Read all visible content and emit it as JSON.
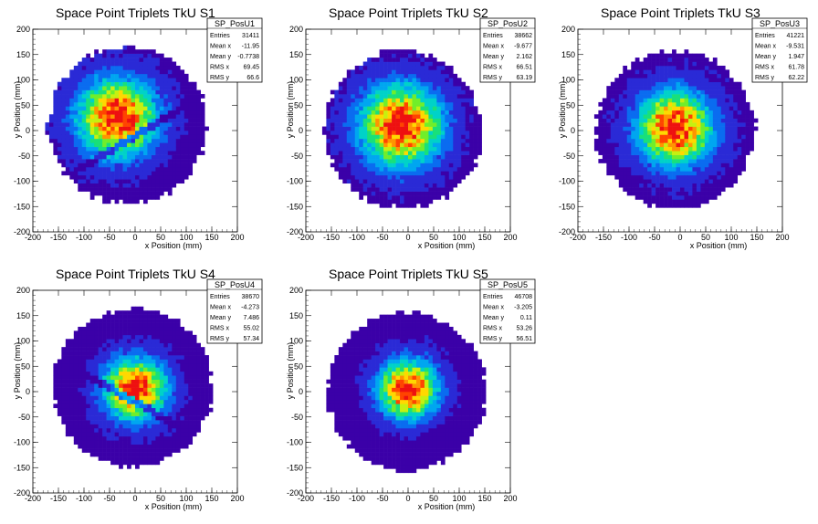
{
  "chart_data": [
    {
      "type": "heatmap",
      "title": "Space Point Triplets TkU S1",
      "xlabel": "x Position (mm)",
      "ylabel": "y Position (mm)",
      "xlim": [
        -200,
        200
      ],
      "ylim": [
        -200,
        200
      ],
      "xticks": [
        "-200",
        "-150",
        "-100",
        "-50",
        "0",
        "50",
        "100",
        "150",
        "200"
      ],
      "yticks": [
        "-200",
        "-150",
        "-100",
        "-50",
        "0",
        "50",
        "100",
        "150",
        "200"
      ],
      "stats": {
        "name": "SP_PosU1",
        "rows": [
          [
            "Entries",
            "31411"
          ],
          [
            "Mean x",
            "-11.95"
          ],
          [
            "Mean y",
            "-0.7738"
          ],
          [
            "RMS x",
            "69.45"
          ],
          [
            "RMS y",
            "66.6"
          ]
        ]
      },
      "distribution": {
        "radius": 155,
        "center_x": -15,
        "center_y": 10,
        "sigma": 48,
        "peak_x": -35,
        "peak_y": 25,
        "band": {
          "slope": 0.6,
          "offset_mm": -10,
          "width_mm": 7
        }
      }
    },
    {
      "type": "heatmap",
      "title": "Space Point Triplets TkU S2",
      "xlabel": "x Position (mm)",
      "ylabel": "y Position (mm)",
      "xlim": [
        -200,
        200
      ],
      "ylim": [
        -200,
        200
      ],
      "xticks": [
        "-200",
        "-150",
        "-100",
        "-50",
        "0",
        "50",
        "100",
        "150",
        "200"
      ],
      "yticks": [
        "-200",
        "-150",
        "-100",
        "-50",
        "0",
        "50",
        "100",
        "150",
        "200"
      ],
      "stats": {
        "name": "SP_PosU2",
        "rows": [
          [
            "Entries",
            "38662"
          ],
          [
            "Mean x",
            "-9.677"
          ],
          [
            "Mean y",
            "2.162"
          ],
          [
            "RMS x",
            "66.51"
          ],
          [
            "RMS y",
            "63.19"
          ]
        ]
      },
      "distribution": {
        "radius": 155,
        "center_x": -10,
        "center_y": 2,
        "sigma": 50,
        "peak_x": -15,
        "peak_y": 10
      }
    },
    {
      "type": "heatmap",
      "title": "Space Point Triplets TkU S3",
      "xlabel": "x Position (mm)",
      "ylabel": "y Position (mm)",
      "xlim": [
        -200,
        200
      ],
      "ylim": [
        -200,
        200
      ],
      "xticks": [
        "-200",
        "-150",
        "-100",
        "-50",
        "0",
        "50",
        "100",
        "150",
        "200"
      ],
      "yticks": [
        "-200",
        "-150",
        "-100",
        "-50",
        "0",
        "50",
        "100",
        "150",
        "200"
      ],
      "stats": {
        "name": "SP_PosU3",
        "rows": [
          [
            "Entries",
            "41221"
          ],
          [
            "Mean x",
            "-9.531"
          ],
          [
            "Mean y",
            "1.947"
          ],
          [
            "RMS x",
            "61.78"
          ],
          [
            "RMS y",
            "62.22"
          ]
        ]
      },
      "distribution": {
        "radius": 155,
        "center_x": -10,
        "center_y": 2,
        "sigma": 46,
        "peak_x": -10,
        "peak_y": 5
      }
    },
    {
      "type": "heatmap",
      "title": "Space Point Triplets TkU S4",
      "xlabel": "x Position (mm)",
      "ylabel": "y Position (mm)",
      "xlim": [
        -200,
        200
      ],
      "ylim": [
        -200,
        200
      ],
      "xticks": [
        "-200",
        "-150",
        "-100",
        "-50",
        "0",
        "50",
        "100",
        "150",
        "200"
      ],
      "yticks": [
        "-200",
        "-150",
        "-100",
        "-50",
        "0",
        "50",
        "100",
        "150",
        "200"
      ],
      "stats": {
        "name": "SP_PosU4",
        "rows": [
          [
            "Entries",
            "38670"
          ],
          [
            "Mean x",
            "-4.273"
          ],
          [
            "Mean y",
            "7.486"
          ],
          [
            "RMS x",
            "55.02"
          ],
          [
            "RMS y",
            "57.34"
          ]
        ]
      },
      "distribution": {
        "radius": 155,
        "center_x": -5,
        "center_y": 8,
        "sigma": 38,
        "peak_x": 0,
        "peak_y": 5,
        "band": {
          "slope": -0.55,
          "offset_mm": -20,
          "width_mm": 7
        }
      }
    },
    {
      "type": "heatmap",
      "title": "Space Point Triplets TkU S5",
      "xlabel": "x Position (mm)",
      "ylabel": "y Position (mm)",
      "xlim": [
        -200,
        200
      ],
      "ylim": [
        -200,
        200
      ],
      "xticks": [
        "-200",
        "-150",
        "-100",
        "-50",
        "0",
        "50",
        "100",
        "150",
        "200"
      ],
      "yticks": [
        "-200",
        "-150",
        "-100",
        "-50",
        "0",
        "50",
        "100",
        "150",
        "200"
      ],
      "stats": {
        "name": "SP_PosU5",
        "rows": [
          [
            "Entries",
            "46708"
          ],
          [
            "Mean x",
            "-3.205"
          ],
          [
            "Mean y",
            "0.11"
          ],
          [
            "RMS x",
            "53.26"
          ],
          [
            "RMS y",
            "56.51"
          ]
        ]
      },
      "distribution": {
        "radius": 155,
        "center_x": -3,
        "center_y": 0,
        "sigma": 36,
        "peak_x": 0,
        "peak_y": 5
      }
    }
  ],
  "palette": [
    "#3b00a8",
    "#2a2ad6",
    "#0a6cf0",
    "#00a6f0",
    "#00d2c8",
    "#18e07a",
    "#70ee2a",
    "#c6f010",
    "#ffd800",
    "#ff9400",
    "#ff4400",
    "#ee1010"
  ]
}
